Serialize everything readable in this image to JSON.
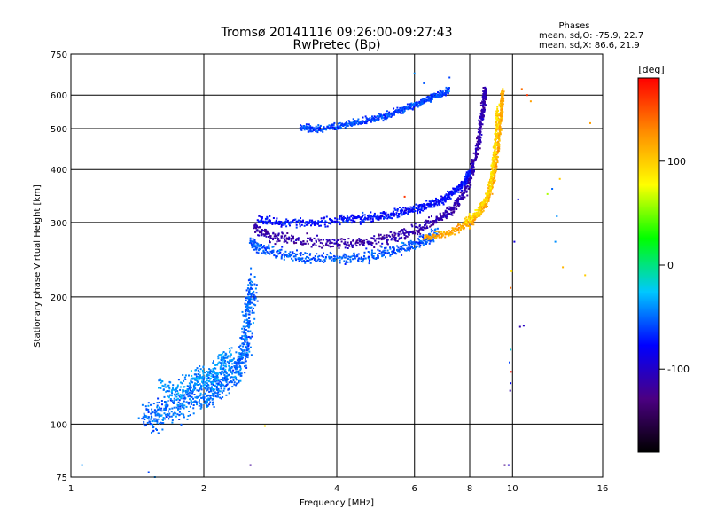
{
  "chart_data": {
    "type": "scatter",
    "title": "Tromsø 20141116 09:26:00-09:27:43",
    "subtitle": "RwPretec (Bp)",
    "xlabel": "Frequency [MHz]",
    "ylabel": "Stationary phase Virtual Height [km]",
    "x_scale": "log",
    "y_scale": "log",
    "xlim": [
      1,
      16
    ],
    "ylim": [
      75,
      750
    ],
    "x_ticks": [
      1,
      2,
      4,
      6,
      8,
      10,
      16
    ],
    "y_ticks": [
      75,
      100,
      200,
      300,
      400,
      500,
      600,
      750
    ],
    "grid": true,
    "phases_box": {
      "title": "Phases",
      "line1": "mean, sd,O: -75.9, 22.7",
      "line2": "mean, sd,X:  86.6, 21.9"
    },
    "colorbar": {
      "label": "[deg]",
      "range": [
        -180,
        180
      ],
      "ticks": [
        100,
        0,
        -100
      ],
      "colormap": [
        "#000000",
        "#4b0082",
        "#0000ff",
        "#00c8ff",
        "#00ff00",
        "#ffff00",
        "#ff8c00",
        "#ff0000"
      ]
    },
    "series": [
      {
        "traces": [
          {
            "x": [
              1.45,
              1.55,
              1.62,
              1.75,
              1.85,
              1.95,
              2.05,
              2.15,
              2.25,
              2.35,
              2.42,
              2.48,
              2.5,
              2.52,
              2.55,
              2.58
            ],
            "y": [
              104,
              103,
              106,
              110,
              112,
              115,
              117,
              120,
              128,
              135,
              138,
              150,
              165,
              180,
              200,
              215
            ],
            "phase": -50,
            "spread": 0.05
          },
          {
            "x": [
              1.6,
              1.75,
              1.9,
              2.0,
              2.1,
              2.2,
              2.3
            ],
            "y": [
              122,
              118,
              125,
              130,
              128,
              140,
              145
            ],
            "phase": -40,
            "spread": 0.04
          },
          {
            "x": [
              2.55,
              2.7,
              3.0,
              3.4,
              4.0,
              4.6,
              5.2,
              5.8,
              6.3,
              6.8
            ],
            "y": [
              270,
              260,
              252,
              248,
              247,
              249,
              254,
              262,
              272,
              282
            ],
            "phase": -55,
            "spread": 0.02
          },
          {
            "x": [
              2.6,
              2.8,
              3.2,
              3.8,
              4.4,
              5.0,
              5.6,
              6.2,
              6.8,
              7.3,
              7.7,
              8.0,
              8.2,
              8.4,
              8.5,
              8.6,
              8.7
            ],
            "y": [
              292,
              280,
              272,
              268,
              268,
              272,
              280,
              292,
              305,
              320,
              345,
              380,
              420,
              470,
              520,
              570,
              620
            ],
            "phase": -110,
            "spread": 0.02
          },
          {
            "x": [
              2.65,
              3.0,
              3.5,
              4.0,
              4.5,
              5.0,
              5.5,
              6.0,
              6.5,
              7.0,
              7.4,
              7.8,
              8.0
            ],
            "y": [
              305,
              300,
              300,
              303,
              307,
              310,
              316,
              322,
              330,
              340,
              355,
              375,
              395
            ],
            "phase": -75,
            "spread": 0.015
          },
          {
            "x": [
              3.3,
              3.6,
              4.0,
              4.4,
              4.8,
              5.2,
              5.6,
              6.0,
              6.4,
              6.8,
              7.2
            ],
            "y": [
              502,
              500,
              505,
              515,
              525,
              538,
              552,
              568,
              585,
              600,
              618
            ],
            "phase": -60,
            "spread": 0.012
          },
          {
            "x": [
              6.3,
              7.0,
              7.6,
              8.2,
              8.7,
              9.0,
              9.2,
              9.3,
              9.4,
              9.45,
              9.5
            ],
            "y": [
              275,
              282,
              290,
              305,
              330,
              370,
              420,
              470,
              520,
              570,
              610
            ],
            "phase": 115,
            "spread": 0.015
          },
          {
            "x": [
              7.8,
              8.4,
              8.8,
              9.0,
              9.1,
              9.2,
              9.25
            ],
            "y": [
              300,
              320,
              350,
              390,
              440,
              500,
              560
            ],
            "phase": 95,
            "spread": 0.015
          }
        ]
      }
    ],
    "outliers": [
      {
        "x": 1.06,
        "y": 80,
        "phase": -40
      },
      {
        "x": 1.55,
        "y": 75,
        "phase": -40
      },
      {
        "x": 1.5,
        "y": 77,
        "phase": -60
      },
      {
        "x": 2.55,
        "y": 80,
        "phase": -120
      },
      {
        "x": 2.75,
        "y": 99,
        "phase": 90
      },
      {
        "x": 6.0,
        "y": 675,
        "phase": -40
      },
      {
        "x": 6.3,
        "y": 640,
        "phase": -55
      },
      {
        "x": 7.2,
        "y": 660,
        "phase": -60
      },
      {
        "x": 5.7,
        "y": 345,
        "phase": 160
      },
      {
        "x": 9.8,
        "y": 80,
        "phase": -100
      },
      {
        "x": 9.9,
        "y": 150,
        "phase": -20
      },
      {
        "x": 9.92,
        "y": 133,
        "phase": 175
      },
      {
        "x": 9.85,
        "y": 140,
        "phase": -60
      },
      {
        "x": 9.9,
        "y": 125,
        "phase": -80
      },
      {
        "x": 9.88,
        "y": 120,
        "phase": -110
      },
      {
        "x": 9.9,
        "y": 210,
        "phase": 140
      },
      {
        "x": 9.95,
        "y": 230,
        "phase": 90
      },
      {
        "x": 10.1,
        "y": 270,
        "phase": -90
      },
      {
        "x": 10.4,
        "y": 170,
        "phase": -110
      },
      {
        "x": 10.6,
        "y": 171,
        "phase": -100
      },
      {
        "x": 10.3,
        "y": 340,
        "phase": -80
      },
      {
        "x": 12.3,
        "y": 360,
        "phase": -50
      },
      {
        "x": 12.8,
        "y": 380,
        "phase": 100
      },
      {
        "x": 12.6,
        "y": 310,
        "phase": -40
      },
      {
        "x": 12.5,
        "y": 270,
        "phase": -40
      },
      {
        "x": 13.0,
        "y": 235,
        "phase": 110
      },
      {
        "x": 14.6,
        "y": 225,
        "phase": 100
      },
      {
        "x": 15.0,
        "y": 515,
        "phase": 120
      },
      {
        "x": 10.8,
        "y": 600,
        "phase": 160
      },
      {
        "x": 11.0,
        "y": 580,
        "phase": 120
      },
      {
        "x": 10.5,
        "y": 620,
        "phase": 140
      },
      {
        "x": 12.0,
        "y": 350,
        "phase": 60
      },
      {
        "x": 9.6,
        "y": 80,
        "phase": -130
      }
    ]
  }
}
